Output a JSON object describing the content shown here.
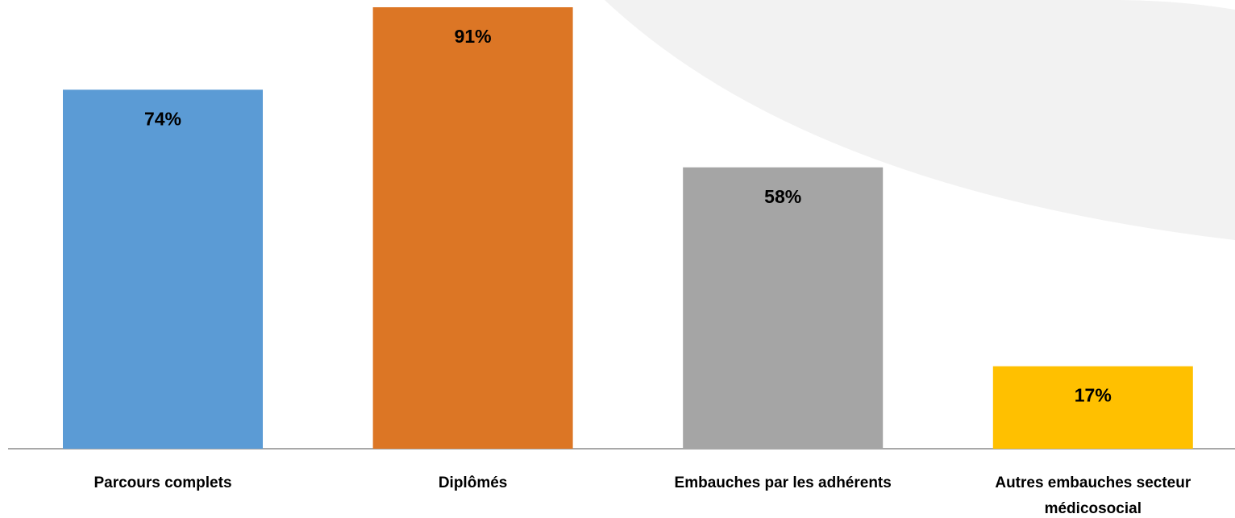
{
  "chart_data": {
    "type": "bar",
    "categories": [
      "Parcours complets",
      "Diplômés",
      "Embauches par les adhérents",
      "Autres embauches secteur médicosocial"
    ],
    "values": [
      74,
      91,
      58,
      17
    ],
    "value_labels": [
      "74%",
      "91%",
      "58%",
      "17%"
    ],
    "colors": [
      "#5b9bd5",
      "#dc7625",
      "#a5a5a5",
      "#ffc000"
    ]
  }
}
